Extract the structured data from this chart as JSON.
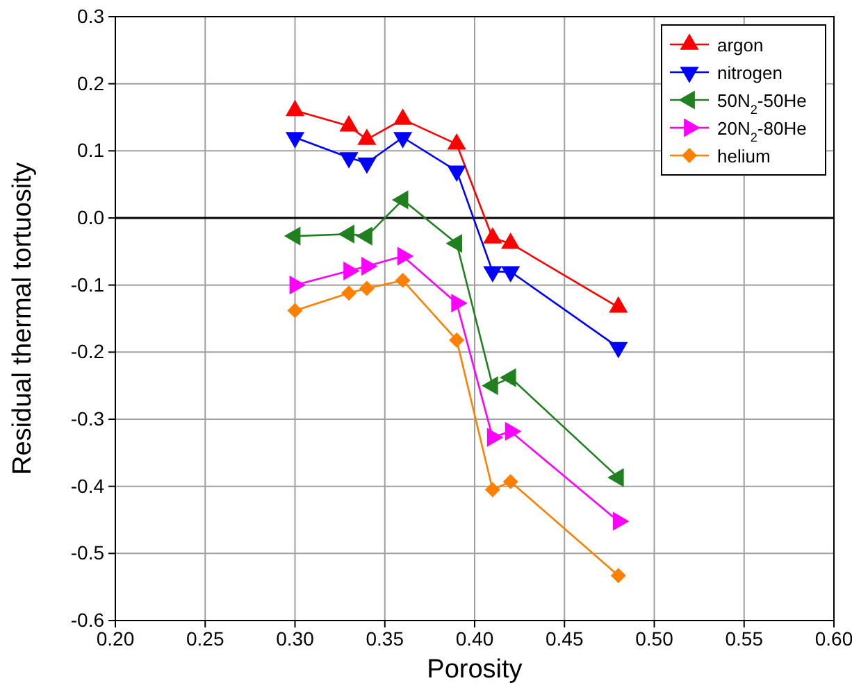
{
  "chart_data": {
    "type": "line",
    "xlabel": "Porosity",
    "ylabel": "Residual thermal tortuosity",
    "x": [
      0.3,
      0.33,
      0.34,
      0.36,
      0.39,
      0.41,
      0.42,
      0.48
    ],
    "xlim": [
      0.2,
      0.6
    ],
    "xticks": [
      {
        "value": 0.2,
        "label": "0.20"
      },
      {
        "value": 0.25,
        "label": "0.25"
      },
      {
        "value": 0.3,
        "label": "0.30"
      },
      {
        "value": 0.35,
        "label": "0.35"
      },
      {
        "value": 0.4,
        "label": "0.40"
      },
      {
        "value": 0.45,
        "label": "0.45"
      },
      {
        "value": 0.5,
        "label": "0.50"
      },
      {
        "value": 0.55,
        "label": "0.55"
      },
      {
        "value": 0.6,
        "label": "0.60"
      }
    ],
    "ylim": [
      -0.6,
      0.3
    ],
    "yticks": [
      {
        "value": -0.6,
        "label": "-0.6"
      },
      {
        "value": -0.5,
        "label": "-0.5"
      },
      {
        "value": -0.4,
        "label": "-0.4"
      },
      {
        "value": -0.3,
        "label": "-0.3"
      },
      {
        "value": -0.2,
        "label": "-0.2"
      },
      {
        "value": -0.1,
        "label": "-0.1"
      },
      {
        "value": 0,
        "label": "0.0"
      },
      {
        "value": 0.1,
        "label": "0.1"
      },
      {
        "value": 0.2,
        "label": "0.2"
      },
      {
        "value": 0.3,
        "label": "0.3"
      }
    ],
    "grid": true,
    "legend": "top right",
    "line_style": "solid",
    "ref_lines": [
      {
        "axis": "y",
        "value": 0,
        "color": "#000000"
      }
    ],
    "series": [
      {
        "name": "argon",
        "color": "#ff0000",
        "marker": "triangle-up",
        "values": [
          0.16,
          0.137,
          0.117,
          0.147,
          0.11,
          -0.03,
          -0.038,
          -0.133
        ]
      },
      {
        "name": "nitrogen",
        "color": "#0000ff",
        "marker": "triangle-down",
        "values": [
          0.12,
          0.09,
          0.082,
          0.12,
          0.07,
          -0.08,
          -0.08,
          -0.193
        ]
      },
      {
        "name": "50N$_{2}$-50He",
        "color": "#208020",
        "marker": "triangle-left",
        "values": [
          -0.027,
          -0.024,
          -0.027,
          0.027,
          -0.038,
          -0.25,
          -0.238,
          -0.387
        ]
      },
      {
        "name": "20N$_{2}$-80He",
        "color": "#ff00ff",
        "marker": "triangle-right",
        "values": [
          -0.1,
          -0.079,
          -0.072,
          -0.057,
          -0.127,
          -0.327,
          -0.318,
          -0.452
        ]
      },
      {
        "name": "helium",
        "color": "#ff8000",
        "marker": "diamond",
        "values": [
          -0.138,
          -0.112,
          -0.105,
          -0.093,
          -0.182,
          -0.405,
          -0.393,
          -0.533
        ]
      }
    ]
  }
}
